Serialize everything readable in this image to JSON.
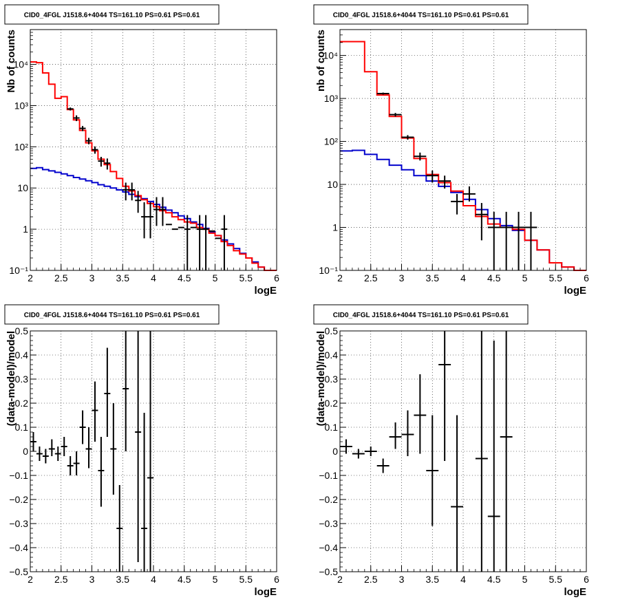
{
  "colors": {
    "data": "#000000",
    "total_model": "#ff0000",
    "background_model": "#0000cc",
    "grid": "#000000",
    "frame": "#000000"
  },
  "chart_data": [
    {
      "id": "top-left",
      "type": "line",
      "title": "CID0_4FGL J1518.6+4044 TS=161.10 PS=0.61 PS=0.61",
      "xlabel": "logE",
      "ylabel": "Nb of counts",
      "xlim": [
        2,
        6
      ],
      "ylim": [
        0.1,
        70000
      ],
      "yscale": "log",
      "grid": true,
      "xticks": [
        "2",
        "2.5",
        "3",
        "3.5",
        "4",
        "4.5",
        "5",
        "5.5",
        "6"
      ],
      "yticks": [
        {
          "v": 0.1,
          "label": "10⁻¹"
        },
        {
          "v": 1,
          "label": "1"
        },
        {
          "v": 10,
          "label": "10"
        },
        {
          "v": 100,
          "label": "10²"
        },
        {
          "v": 1000,
          "label": "10³"
        },
        {
          "v": 10000,
          "label": "10⁴"
        }
      ],
      "bins": {
        "edges": [
          2.0,
          2.1,
          2.2,
          2.3,
          2.4,
          2.5,
          2.6,
          2.7,
          2.8,
          2.9,
          3.0,
          3.1,
          3.2,
          3.3,
          3.4,
          3.5,
          3.6,
          3.7,
          3.8,
          3.9,
          4.0,
          4.1,
          4.2,
          4.3,
          4.4,
          4.5,
          4.6,
          4.7,
          4.8,
          4.9,
          5.0,
          5.1,
          5.2,
          5.3,
          5.4,
          5.5,
          5.6,
          5.7,
          5.8,
          5.9,
          6.0
        ]
      },
      "series": [
        {
          "kind": "step",
          "color_key": "background_model",
          "values": [
            30,
            31,
            28,
            26,
            24,
            22,
            20,
            18,
            16.5,
            15,
            13.5,
            12,
            11,
            10,
            9,
            8,
            7,
            6.2,
            5.5,
            4.7,
            4,
            3.4,
            2.9,
            2.5,
            2.1,
            1.8,
            1.5,
            1.3,
            1.05,
            0.86,
            0.7,
            0.55,
            0.44,
            0.34,
            0.26,
            0.2,
            0.16,
            0.12,
            0.1,
            0.1
          ]
        },
        {
          "kind": "step",
          "color_key": "total_model",
          "values": [
            11500,
            11000,
            6200,
            3300,
            1500,
            1650,
            800,
            450,
            250,
            125,
            80,
            50,
            37,
            25,
            17,
            11,
            8.5,
            6.5,
            5.2,
            4.2,
            3.5,
            2.8,
            2.5,
            2,
            1.7,
            1.5,
            1.4,
            1.1,
            1,
            0.8,
            0.7,
            0.5,
            0.4,
            0.3,
            0.25,
            0.2,
            0.15,
            0.12,
            0.1,
            0.1
          ]
        },
        {
          "kind": "points",
          "color_key": "data",
          "x": [
            2.65,
            2.75,
            2.85,
            2.95,
            3.05,
            3.15,
            3.25,
            3.55,
            3.65,
            3.75,
            3.85,
            3.95,
            4.05,
            4.15,
            4.25,
            4.35,
            4.45,
            4.55,
            4.65,
            4.75,
            4.85,
            4.95,
            5.05,
            5.15
          ],
          "y": [
            830,
            500,
            280,
            140,
            85,
            45,
            40,
            9,
            9,
            5,
            2,
            2,
            3,
            3,
            1.3,
            1,
            1.1,
            1,
            1.1,
            1,
            1,
            0.9,
            0.6,
            1
          ],
          "ylo": [
            760,
            420,
            240,
            115,
            68,
            33,
            28,
            5,
            5,
            2.5,
            0.6,
            0.6,
            1.2,
            1.2,
            0.3,
            0.1,
            0.1,
            0.1,
            0.1,
            0.1,
            0.1,
            0.1,
            0.1,
            0.1
          ],
          "yhi": [
            900,
            580,
            320,
            165,
            102,
            57,
            52,
            13.5,
            13.5,
            8.5,
            4.5,
            4.5,
            6,
            6,
            2.8,
            2.2,
            2.3,
            2.2,
            2.3,
            2.2,
            2.2,
            2.1,
            1.5,
            2.2
          ],
          "show_bar": [
            true,
            true,
            true,
            true,
            true,
            true,
            true,
            true,
            true,
            true,
            true,
            true,
            true,
            true,
            false,
            false,
            false,
            true,
            false,
            true,
            true,
            false,
            false,
            true
          ]
        }
      ]
    },
    {
      "id": "top-right",
      "type": "line",
      "title": "CID0_4FGL J1518.6+4044 TS=161.10 PS=0.61 PS=0.61",
      "xlabel": "logE",
      "ylabel": "nb of counts",
      "xlim": [
        2,
        6
      ],
      "ylim": [
        0.1,
        40000
      ],
      "yscale": "log",
      "grid": true,
      "xticks": [
        "2",
        "2.5",
        "3",
        "3.5",
        "4",
        "4.5",
        "5",
        "5.5",
        "6"
      ],
      "yticks": [
        {
          "v": 0.1,
          "label": "10⁻¹"
        },
        {
          "v": 1,
          "label": "1"
        },
        {
          "v": 10,
          "label": "10"
        },
        {
          "v": 100,
          "label": "10²"
        },
        {
          "v": 1000,
          "label": "10³"
        },
        {
          "v": 10000,
          "label": "10⁴"
        }
      ],
      "bins": {
        "edges": [
          2.0,
          2.2,
          2.4,
          2.6,
          2.8,
          3.0,
          3.2,
          3.4,
          3.6,
          3.8,
          4.0,
          4.2,
          4.4,
          4.6,
          4.8,
          5.0,
          5.2,
          5.4,
          5.6,
          5.8,
          6.0
        ]
      },
      "series": [
        {
          "kind": "step",
          "color_key": "background_model",
          "values": [
            60,
            62,
            50,
            38,
            28,
            22,
            16,
            12,
            9,
            6.5,
            4.5,
            2.6,
            1.6,
            1.1,
            0.85,
            0.5,
            0.3,
            0.15,
            0.12,
            0.1
          ]
        },
        {
          "kind": "step",
          "color_key": "total_model",
          "values": [
            21000,
            21000,
            4200,
            1200,
            380,
            120,
            40,
            17,
            11,
            7,
            3.2,
            1.8,
            1.2,
            1,
            0.9,
            0.5,
            0.3,
            0.15,
            0.12,
            0.1
          ]
        },
        {
          "kind": "points",
          "color_key": "data",
          "x": [
            2.7,
            2.9,
            3.1,
            3.3,
            3.5,
            3.7,
            3.9,
            4.1,
            4.3,
            4.5,
            4.7,
            4.9,
            5.1
          ],
          "y": [
            1300,
            420,
            125,
            45,
            16,
            12,
            4,
            6,
            2,
            1,
            1,
            1,
            1
          ],
          "ylo": [
            1230,
            380,
            110,
            36,
            11,
            8,
            2,
            4,
            0.5,
            0.1,
            0.1,
            0.1,
            0.1
          ],
          "yhi": [
            1370,
            460,
            140,
            55,
            21,
            16,
            6,
            9,
            3.7,
            2.3,
            2.3,
            2.3,
            2.3
          ],
          "show_bar": [
            true,
            true,
            true,
            true,
            true,
            true,
            true,
            true,
            true,
            true,
            true,
            true,
            true
          ]
        }
      ]
    },
    {
      "id": "bottom-left",
      "type": "scatter",
      "title": "CID0_4FGL J1518.6+4044 TS=161.10 PS=0.61 PS=0.61",
      "xlabel": "logE",
      "ylabel": "(data-model)/model",
      "xlim": [
        2,
        6
      ],
      "ylim": [
        -0.5,
        0.5
      ],
      "yscale": "linear",
      "grid": true,
      "xticks": [
        "2",
        "2.5",
        "3",
        "3.5",
        "4",
        "4.5",
        "5",
        "5.5",
        "6"
      ],
      "yticks": [
        {
          "v": -0.5,
          "label": "−0.5"
        },
        {
          "v": -0.4,
          "label": "−0.4"
        },
        {
          "v": -0.3,
          "label": "−0.3"
        },
        {
          "v": -0.2,
          "label": "−0.2"
        },
        {
          "v": -0.1,
          "label": "−0.1"
        },
        {
          "v": 0,
          "label": "0"
        },
        {
          "v": 0.1,
          "label": "0.1"
        },
        {
          "v": 0.2,
          "label": "0.2"
        },
        {
          "v": 0.3,
          "label": "0.3"
        },
        {
          "v": 0.4,
          "label": "0.4"
        },
        {
          "v": 0.5,
          "label": "0.5"
        }
      ],
      "series": [
        {
          "kind": "points",
          "color_key": "data",
          "xhalf": 0.05,
          "x": [
            2.05,
            2.15,
            2.25,
            2.35,
            2.45,
            2.55,
            2.65,
            2.75,
            2.85,
            2.95,
            3.05,
            3.15,
            3.25,
            3.35,
            3.45,
            3.55,
            3.75,
            3.85,
            3.95
          ],
          "y": [
            0.04,
            -0.01,
            -0.02,
            0.01,
            -0.01,
            0.02,
            -0.06,
            -0.05,
            0.1,
            0.01,
            0.17,
            -0.08,
            0.24,
            0.01,
            -0.32,
            0.26,
            0.08,
            -0.32,
            -0.11
          ],
          "ylo": [
            0.0,
            -0.04,
            -0.05,
            -0.02,
            -0.04,
            -0.02,
            -0.1,
            -0.1,
            0.03,
            -0.07,
            0.04,
            -0.23,
            0.06,
            -0.18,
            -0.5,
            0.0,
            -0.46,
            -0.5,
            -0.5
          ],
          "yhi": [
            0.08,
            0.02,
            0.01,
            0.05,
            0.02,
            0.06,
            -0.02,
            0.0,
            0.17,
            0.1,
            0.29,
            0.06,
            0.43,
            0.2,
            -0.14,
            0.5,
            0.5,
            0.16,
            0.5
          ]
        }
      ]
    },
    {
      "id": "bottom-right",
      "type": "scatter",
      "title": "CID0_4FGL J1518.6+4044 TS=161.10 PS=0.61 PS=0.61",
      "xlabel": "logE",
      "ylabel": "(data-model)/model",
      "xlim": [
        2,
        6
      ],
      "ylim": [
        -0.5,
        0.5
      ],
      "yscale": "linear",
      "grid": true,
      "xticks": [
        "2",
        "2.5",
        "3",
        "3.5",
        "4",
        "4.5",
        "5",
        "5.5",
        "6"
      ],
      "yticks": [
        {
          "v": -0.5,
          "label": "−0.5"
        },
        {
          "v": -0.4,
          "label": "−0.4"
        },
        {
          "v": -0.3,
          "label": "−0.3"
        },
        {
          "v": -0.2,
          "label": "−0.2"
        },
        {
          "v": -0.1,
          "label": "−0.1"
        },
        {
          "v": 0,
          "label": "0"
        },
        {
          "v": 0.1,
          "label": "0.1"
        },
        {
          "v": 0.2,
          "label": "0.2"
        },
        {
          "v": 0.3,
          "label": "0.3"
        },
        {
          "v": 0.4,
          "label": "0.4"
        },
        {
          "v": 0.5,
          "label": "0.5"
        }
      ],
      "series": [
        {
          "kind": "points",
          "color_key": "data",
          "xhalf": 0.1,
          "x": [
            2.1,
            2.3,
            2.5,
            2.7,
            2.9,
            3.1,
            3.3,
            3.5,
            3.7,
            3.9,
            4.3,
            4.5,
            4.7
          ],
          "y": [
            0.02,
            -0.01,
            0.0,
            -0.06,
            0.06,
            0.07,
            0.15,
            -0.08,
            0.36,
            -0.23,
            -0.03,
            -0.27,
            0.06
          ],
          "ylo": [
            -0.01,
            -0.03,
            -0.02,
            -0.09,
            0.01,
            -0.02,
            -0.01,
            -0.31,
            -0.04,
            -0.5,
            -0.5,
            -0.5,
            -0.5
          ],
          "yhi": [
            0.05,
            0.01,
            0.02,
            -0.03,
            0.12,
            0.17,
            0.32,
            0.15,
            0.5,
            0.15,
            0.5,
            0.46,
            0.5
          ]
        }
      ]
    }
  ]
}
